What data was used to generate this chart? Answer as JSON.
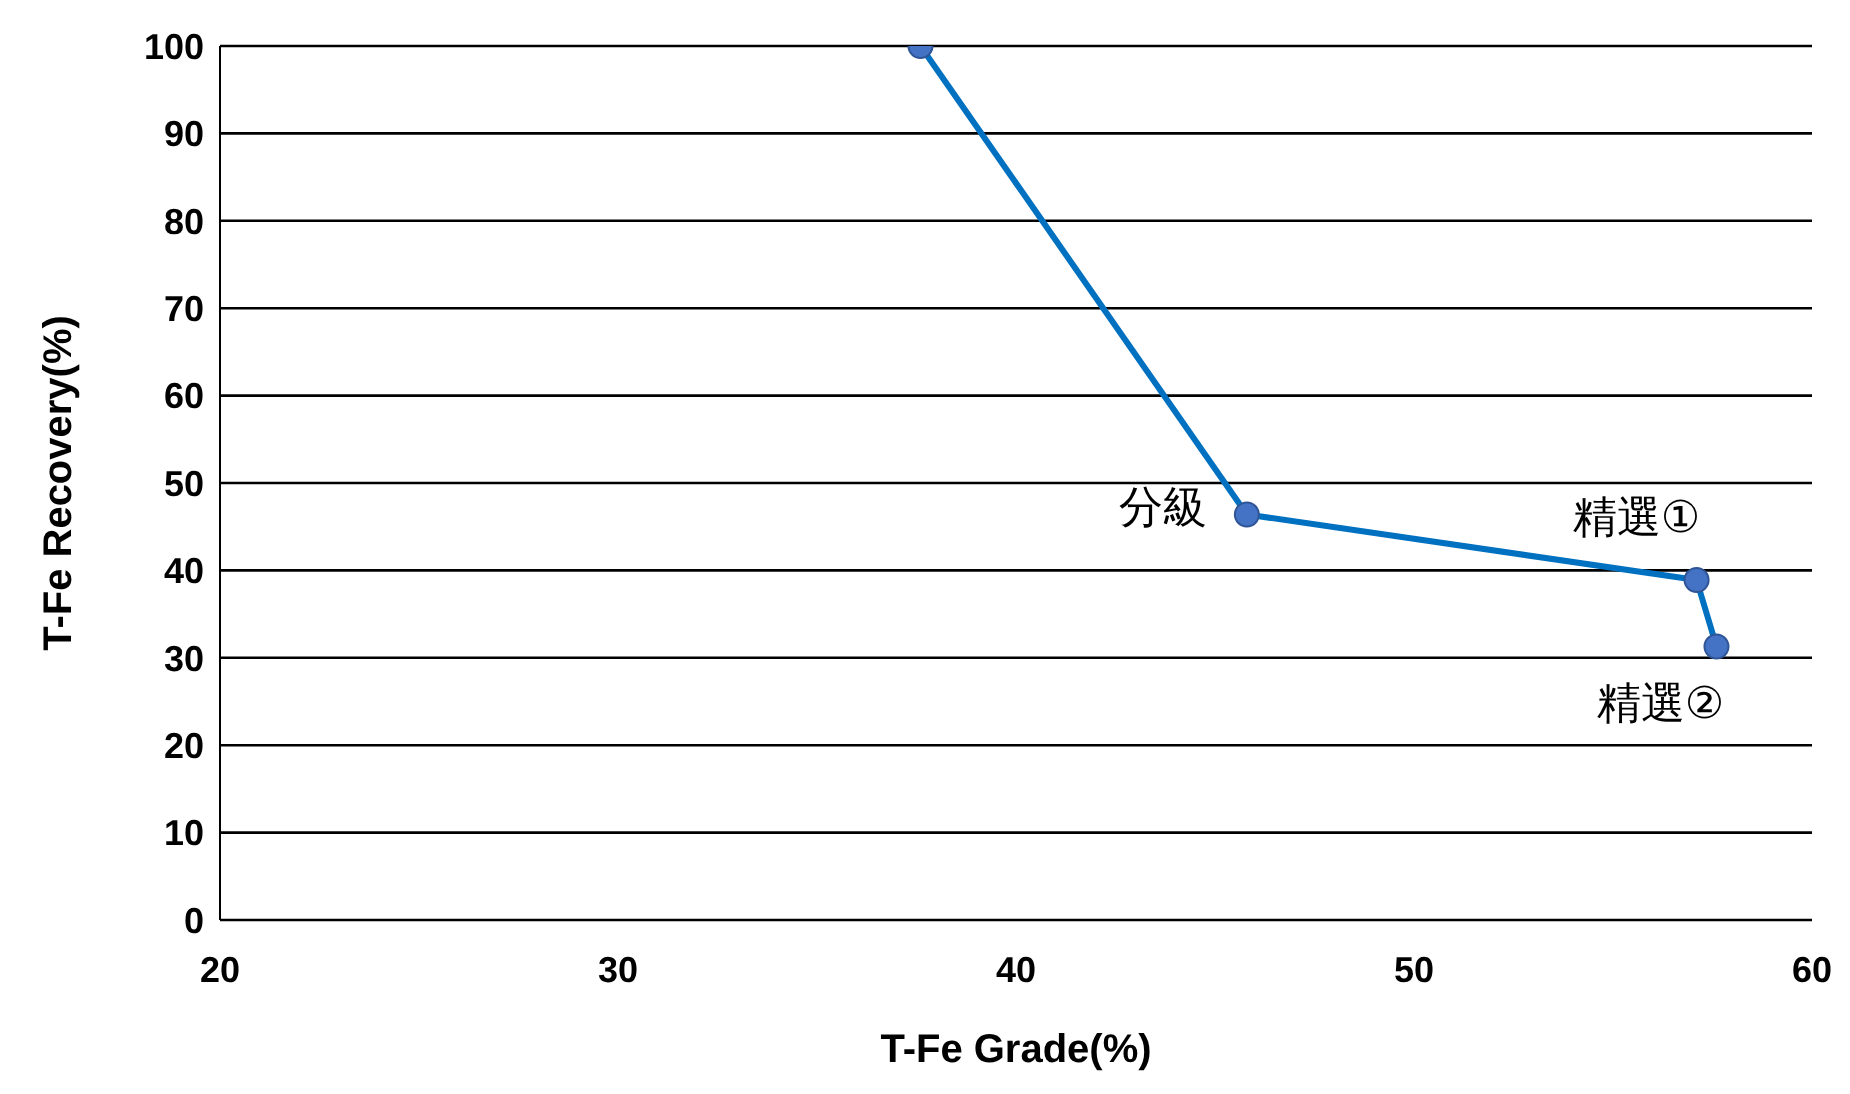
{
  "chart_data": {
    "type": "line",
    "xlabel": "T-Fe Grade(%)",
    "ylabel": "T-Fe Recovery(%)",
    "x": [
      37.6,
      45.8,
      57.1,
      57.6
    ],
    "series": [
      {
        "color": "#0070c0",
        "values": [
          100,
          46.4,
          38.9,
          31.3
        ]
      }
    ],
    "xlim": [
      20,
      60
    ],
    "xticks": [
      20,
      30,
      40,
      50,
      60
    ],
    "ylim": [
      0,
      100
    ],
    "yticks": [
      0,
      10,
      20,
      30,
      40,
      50,
      60,
      70,
      80,
      90,
      100
    ],
    "grid": "y",
    "marker": "circle",
    "annotations": [
      {
        "text": "分級",
        "x": 45.8,
        "y": 46.4
      },
      {
        "text": "精選①",
        "x": 57.1,
        "y": 38.9
      },
      {
        "text": "精選②",
        "x": 57.6,
        "y": 31.3
      }
    ]
  }
}
